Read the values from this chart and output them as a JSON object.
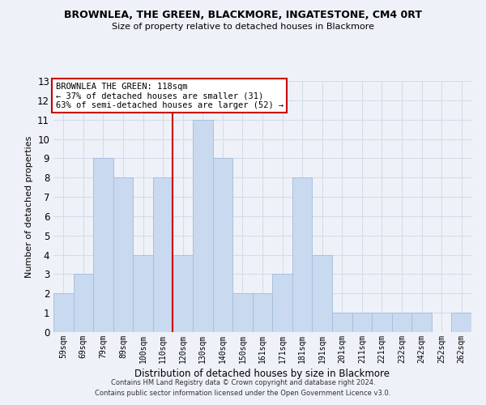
{
  "title": "BROWNLEA, THE GREEN, BLACKMORE, INGATESTONE, CM4 0RT",
  "subtitle": "Size of property relative to detached houses in Blackmore",
  "xlabel": "Distribution of detached houses by size in Blackmore",
  "ylabel": "Number of detached properties",
  "footer_line1": "Contains HM Land Registry data © Crown copyright and database right 2024.",
  "footer_line2": "Contains public sector information licensed under the Open Government Licence v3.0.",
  "bar_labels": [
    "59sqm",
    "69sqm",
    "79sqm",
    "89sqm",
    "100sqm",
    "110sqm",
    "120sqm",
    "130sqm",
    "140sqm",
    "150sqm",
    "161sqm",
    "171sqm",
    "181sqm",
    "191sqm",
    "201sqm",
    "211sqm",
    "221sqm",
    "232sqm",
    "242sqm",
    "252sqm",
    "262sqm"
  ],
  "bar_values": [
    2,
    3,
    9,
    8,
    4,
    8,
    4,
    11,
    9,
    2,
    2,
    3,
    8,
    4,
    1,
    1,
    1,
    1,
    1,
    0,
    1
  ],
  "bar_color": "#c9d9f0",
  "bar_edge_color": "#a8c0dc",
  "reference_line_index": 6,
  "reference_line_color": "#cc0000",
  "annotation_title": "BROWNLEA THE GREEN: 118sqm",
  "annotation_line1": "← 37% of detached houses are smaller (31)",
  "annotation_line2": "63% of semi-detached houses are larger (52) →",
  "annotation_box_color": "#ffffff",
  "annotation_box_edge_color": "#cc0000",
  "ylim": [
    0,
    13
  ],
  "yticks": [
    0,
    1,
    2,
    3,
    4,
    5,
    6,
    7,
    8,
    9,
    10,
    11,
    12,
    13
  ],
  "grid_color": "#d4dce8",
  "background_color": "#eef2f8"
}
